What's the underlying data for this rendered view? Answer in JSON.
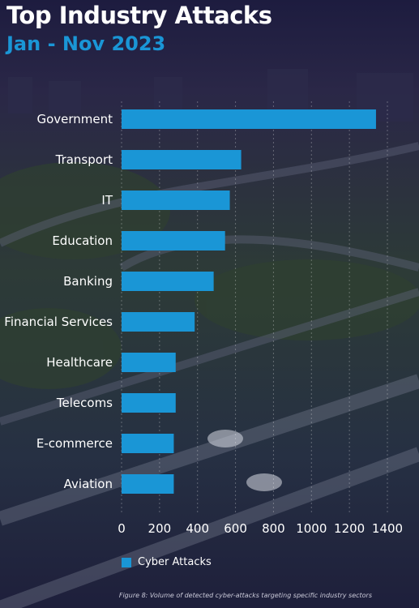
{
  "title": "Top Industry Attacks",
  "subtitle": "Jan - Nov 2023",
  "caption": "Figure 8: Volume of detected cyber-attacks targeting specific industry sectors",
  "colors": {
    "bar": "#1a96d6",
    "title": "#ffffff",
    "subtitle": "#1a96d6",
    "background": "#1c1c3a"
  },
  "chart_data": {
    "type": "bar",
    "orientation": "horizontal",
    "categories": [
      "Government",
      "Transport",
      "IT",
      "Education",
      "Banking",
      "Financial Services",
      "Healthcare",
      "Telecoms",
      "E-commerce",
      "Aviation"
    ],
    "series": [
      {
        "name": "Cyber Attacks",
        "values": [
          1340,
          630,
          570,
          545,
          485,
          385,
          285,
          285,
          275,
          275
        ]
      }
    ],
    "xticks": [
      0,
      200,
      400,
      600,
      800,
      1000,
      1200,
      1400
    ],
    "xlim": [
      0,
      1400
    ],
    "grid": true,
    "legend": "bottom-left"
  }
}
